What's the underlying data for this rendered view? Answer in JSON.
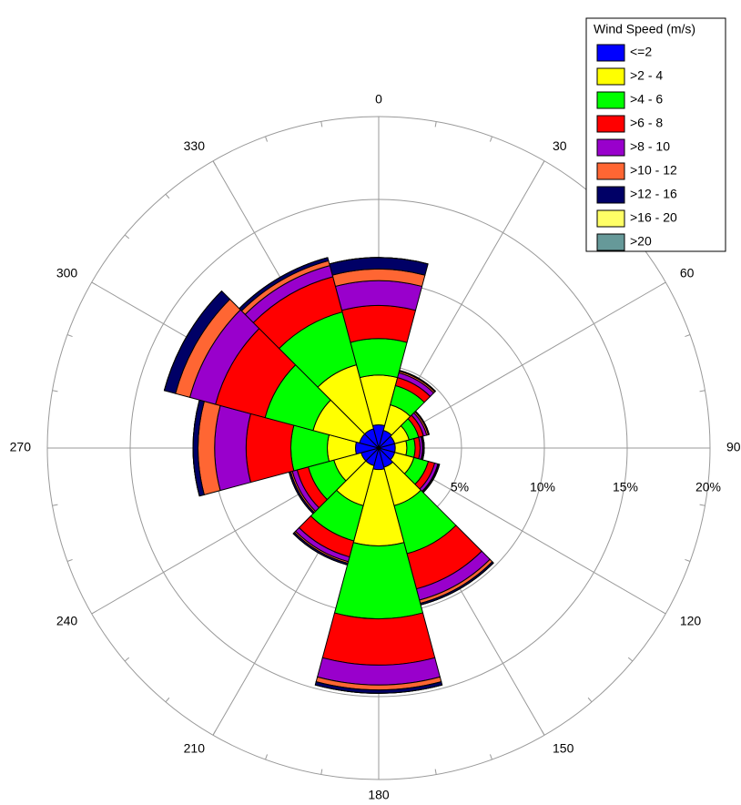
{
  "chart_data": {
    "type": "windrose",
    "legend_title": "Wind Speed (m/s)",
    "legend": "top-right",
    "directions": [
      0,
      30,
      60,
      90,
      120,
      150,
      180,
      210,
      240,
      270,
      300,
      330
    ],
    "rlim": [
      0,
      20
    ],
    "rticks": [
      {
        "value": 5,
        "label": "5%"
      },
      {
        "value": 10,
        "label": "10%"
      },
      {
        "value": 15,
        "label": "15%"
      },
      {
        "value": 20,
        "label": "20%"
      }
    ],
    "grid": true,
    "series": [
      {
        "name": "<=2",
        "color": "#0000ff",
        "values": [
          1.4,
          1.1,
          1.0,
          1.0,
          1.0,
          1.2,
          1.3,
          1.1,
          1.1,
          1.4,
          1.2,
          1.2
        ]
      },
      {
        "name": ">2 - 4",
        "color": "#ffff00",
        "values": [
          3.0,
          1.6,
          0.9,
          0.7,
          1.2,
          2.4,
          4.6,
          2.5,
          1.7,
          1.7,
          2.9,
          4.0
        ]
      },
      {
        "name": ">4 - 6",
        "color": "#00ff00",
        "values": [
          2.2,
          1.2,
          0.6,
          0.5,
          0.9,
          3.0,
          4.4,
          2.2,
          1.6,
          2.2,
          3.0,
          3.3
        ]
      },
      {
        "name": ">6 - 8",
        "color": "#ff0000",
        "values": [
          2.0,
          0.5,
          0.3,
          0.3,
          0.4,
          2.2,
          2.8,
          1.0,
          0.7,
          2.7,
          3.1,
          2.2
        ]
      },
      {
        "name": ">8 - 10",
        "color": "#9900cc",
        "values": [
          1.5,
          0.3,
          0.2,
          0.15,
          0.2,
          0.7,
          1.2,
          0.3,
          0.3,
          1.9,
          1.6,
          0.7
        ]
      },
      {
        "name": ">10 - 12",
        "color": "#ff6633",
        "values": [
          0.7,
          0.1,
          0.1,
          0.05,
          0.05,
          0.2,
          0.3,
          0.1,
          0.1,
          1.0,
          0.9,
          0.3
        ]
      },
      {
        "name": ">12 - 16",
        "color": "#000066",
        "values": [
          0.7,
          0.05,
          0.05,
          0.05,
          0.05,
          0.1,
          0.2,
          0.1,
          0.1,
          0.3,
          0.7,
          0.2
        ]
      },
      {
        "name": ">16 - 20",
        "color": "#ffff66",
        "values": [
          0,
          0,
          0,
          0,
          0,
          0,
          0,
          0,
          0,
          0,
          0,
          0
        ]
      },
      {
        "name": ">20",
        "color": "#669999",
        "values": [
          0,
          0,
          0,
          0,
          0,
          0,
          0,
          0,
          0,
          0,
          0,
          0
        ]
      }
    ]
  }
}
